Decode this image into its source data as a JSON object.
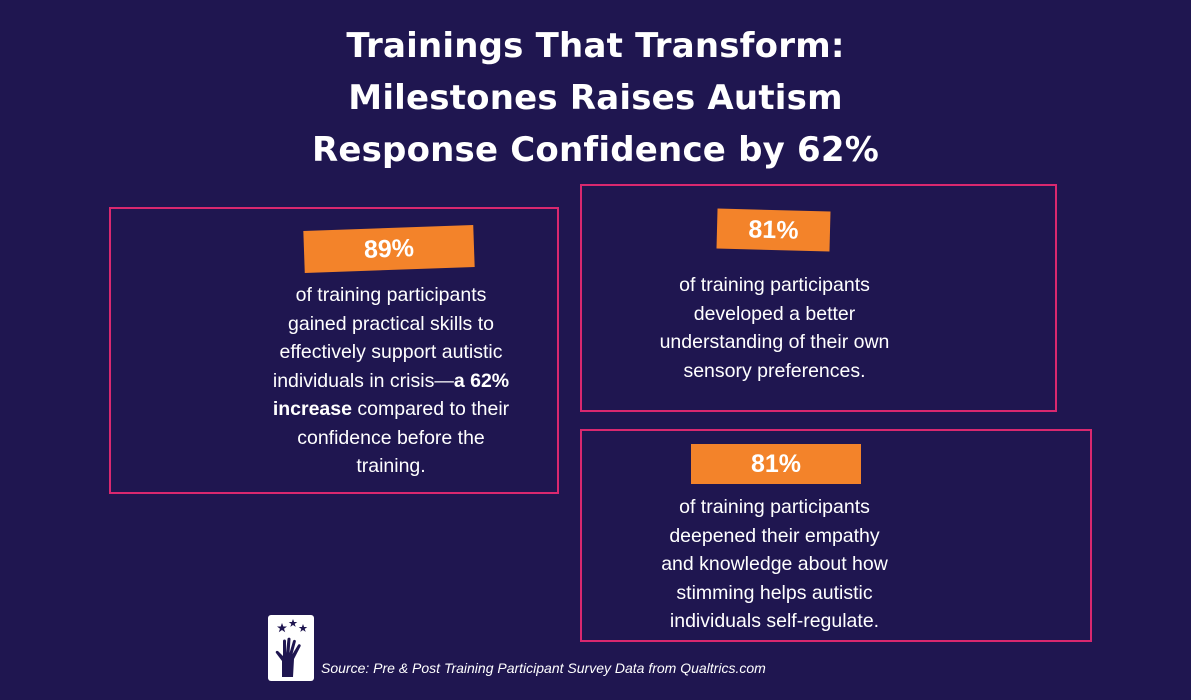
{
  "title": {
    "line1": "Trainings That Transform:",
    "line2": "Milestones Raises Autism",
    "line3": "Response Confidence by 62%"
  },
  "cards": [
    {
      "stat": "89%",
      "lines": [
        "of training participants",
        "gained practical skills to",
        "effectively support autistic",
        "individuals in crisis—",
        "a 62%",
        "increase",
        " compared to their",
        "confidence before the",
        "training."
      ]
    },
    {
      "stat": "81%",
      "lines": [
        "of training participants",
        "developed a better",
        "understanding of their own",
        "sensory preferences."
      ]
    },
    {
      "stat": "81%",
      "lines": [
        "of training participants",
        "deepened their empathy",
        "and knowledge about how",
        "stimming helps autistic",
        "individuals self-regulate."
      ]
    }
  ],
  "source": "Source: Pre & Post Training Participant Survey Data from Qualtrics.com",
  "logo_icon": "hand-reaching-stars-icon",
  "colors": {
    "background": "#1f1650",
    "card_border": "#d9286f",
    "stat_tag": "#f3832a",
    "text": "#ffffff"
  }
}
